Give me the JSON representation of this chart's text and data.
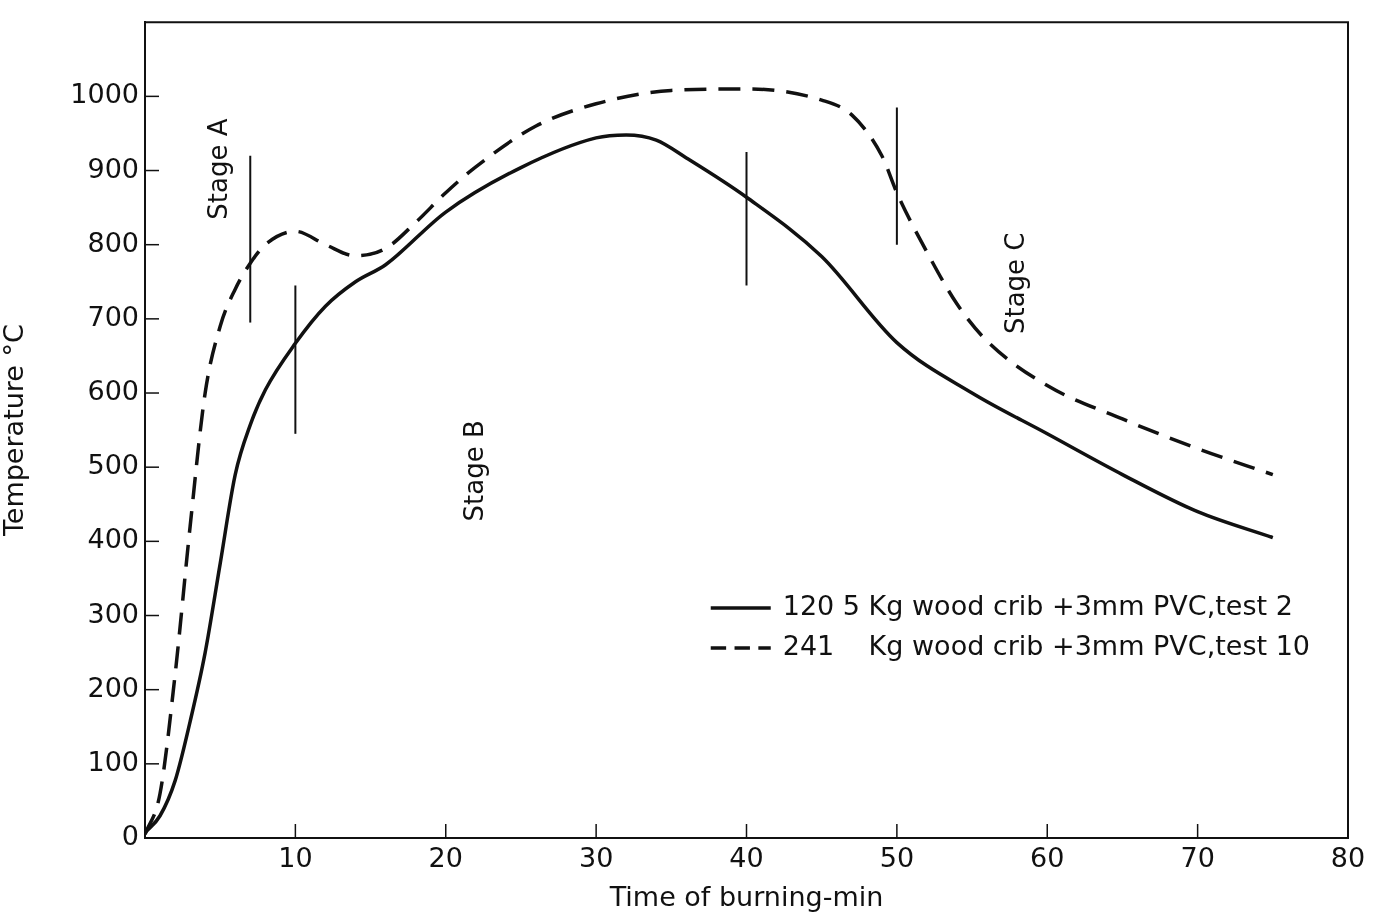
{
  "chart_data": {
    "type": "line",
    "xlabel": "Time of burning-min",
    "ylabel": "Temperature °C",
    "xlim": [
      0,
      80
    ],
    "xticks": [
      10,
      20,
      30,
      40,
      50,
      60,
      70,
      80
    ],
    "ylim": [
      0,
      1100
    ],
    "yticks": [
      0,
      100,
      200,
      300,
      400,
      500,
      600,
      700,
      800,
      900,
      1000
    ],
    "grid": false,
    "legend": "bottom right",
    "marker": "none",
    "series": [
      {
        "name": "120 5 Kg wood crib +3mm PVC,test 2",
        "color": "#111111",
        "line_style": "solid",
        "x": [
          0,
          1,
          2,
          3,
          4,
          5,
          6,
          7,
          8,
          10,
          12,
          14,
          16,
          20,
          25,
          30,
          32,
          34,
          36,
          40,
          45,
          50,
          55,
          60,
          65,
          70,
          75
        ],
        "values": [
          7,
          30,
          77,
          157,
          250,
          370,
          490,
          557,
          604,
          667,
          717,
          750,
          773,
          844,
          904,
          944,
          948,
          941,
          917,
          864,
          784,
          668,
          600,
          545,
          490,
          440,
          405
        ]
      },
      {
        "name": "241    Kg wood crib +3mm PVC,test 10",
        "color": "#111111",
        "line_style": "dashed",
        "x": [
          0,
          1,
          2,
          3,
          4,
          5,
          6,
          7,
          8,
          10,
          12,
          14,
          16,
          18,
          20,
          22,
          26,
          30,
          35,
          40,
          45,
          47,
          49,
          50,
          52,
          54,
          56,
          60,
          65,
          70,
          75
        ],
        "values": [
          5,
          60,
          220,
          420,
          600,
          690,
          740,
          775,
          800,
          818,
          800,
          785,
          795,
          830,
          870,
          905,
          960,
          990,
          1008,
          1010,
          995,
          975,
          920,
          870,
          790,
          720,
          670,
          610,
          565,
          525,
          490
        ]
      },
      {
        "type": "line",
        "color": "#111111",
        "line_style": "solid",
        "x": [
          7,
          7
        ],
        "values": [
          695,
          920
        ]
      },
      {
        "type": "line",
        "color": "#111111",
        "line_style": "solid",
        "x": [
          10,
          10
        ],
        "values": [
          545,
          745
        ]
      },
      {
        "type": "line",
        "color": "#111111",
        "line_style": "solid",
        "x": [
          40,
          40
        ],
        "values": [
          745,
          925
        ]
      },
      {
        "type": "line",
        "color": "#111111",
        "line_style": "solid",
        "x": [
          50,
          50
        ],
        "values": [
          800,
          985
        ]
      }
    ],
    "annotations": [
      "Stage A",
      "Stage B",
      "Stage C"
    ]
  }
}
